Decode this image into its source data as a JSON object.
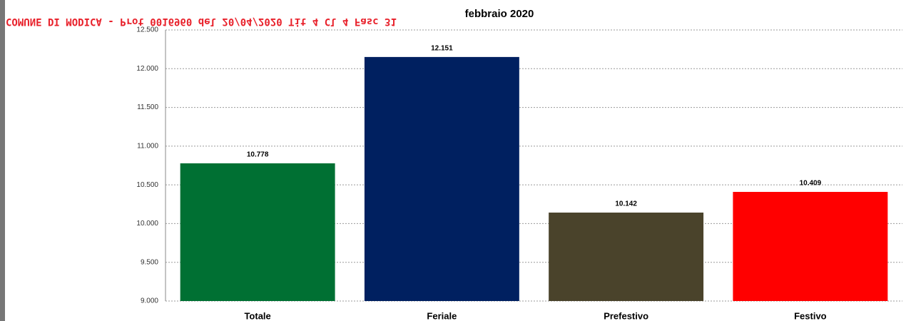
{
  "chart_data": {
    "type": "bar",
    "title": "febbraio 2020",
    "watermark": "COMUNE DI MODICA - Prot 0016960 del 20/04/2020 Tit 4 Cl 4 Fasc 31",
    "categories": [
      "Totale",
      "Feriale",
      "Prefestivo",
      "Festivo"
    ],
    "values": [
      10778,
      12151,
      10142,
      10409
    ],
    "value_labels": [
      "10.778",
      "12.151",
      "10.142",
      "10.409"
    ],
    "colors": [
      "#007033",
      "#002060",
      "#4a432b",
      "#ff0000"
    ],
    "ylim": [
      9000,
      12500
    ],
    "yticks": [
      {
        "value": 9000,
        "label": "9.000"
      },
      {
        "value": 9500,
        "label": "9.500"
      },
      {
        "value": 10000,
        "label": "10.000"
      },
      {
        "value": 10500,
        "label": "10.500"
      },
      {
        "value": 11000,
        "label": "11.000"
      },
      {
        "value": 11500,
        "label": "11.500"
      },
      {
        "value": 12000,
        "label": "12.000"
      },
      {
        "value": 12500,
        "label": "12.500"
      }
    ],
    "grid": true
  }
}
